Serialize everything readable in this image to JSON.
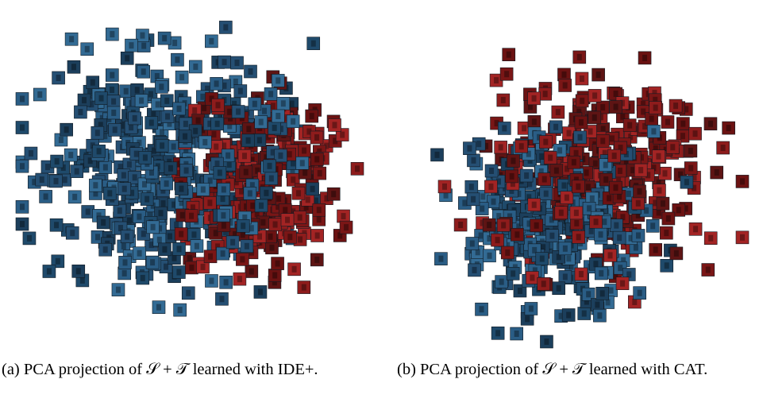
{
  "figures": [
    {
      "caption": "(a) PCA projection of 𝒮 + 𝒯 learned with IDE+."
    },
    {
      "caption": "(b) PCA projection of 𝒮 + 𝒯 learned with CAT."
    }
  ]
}
